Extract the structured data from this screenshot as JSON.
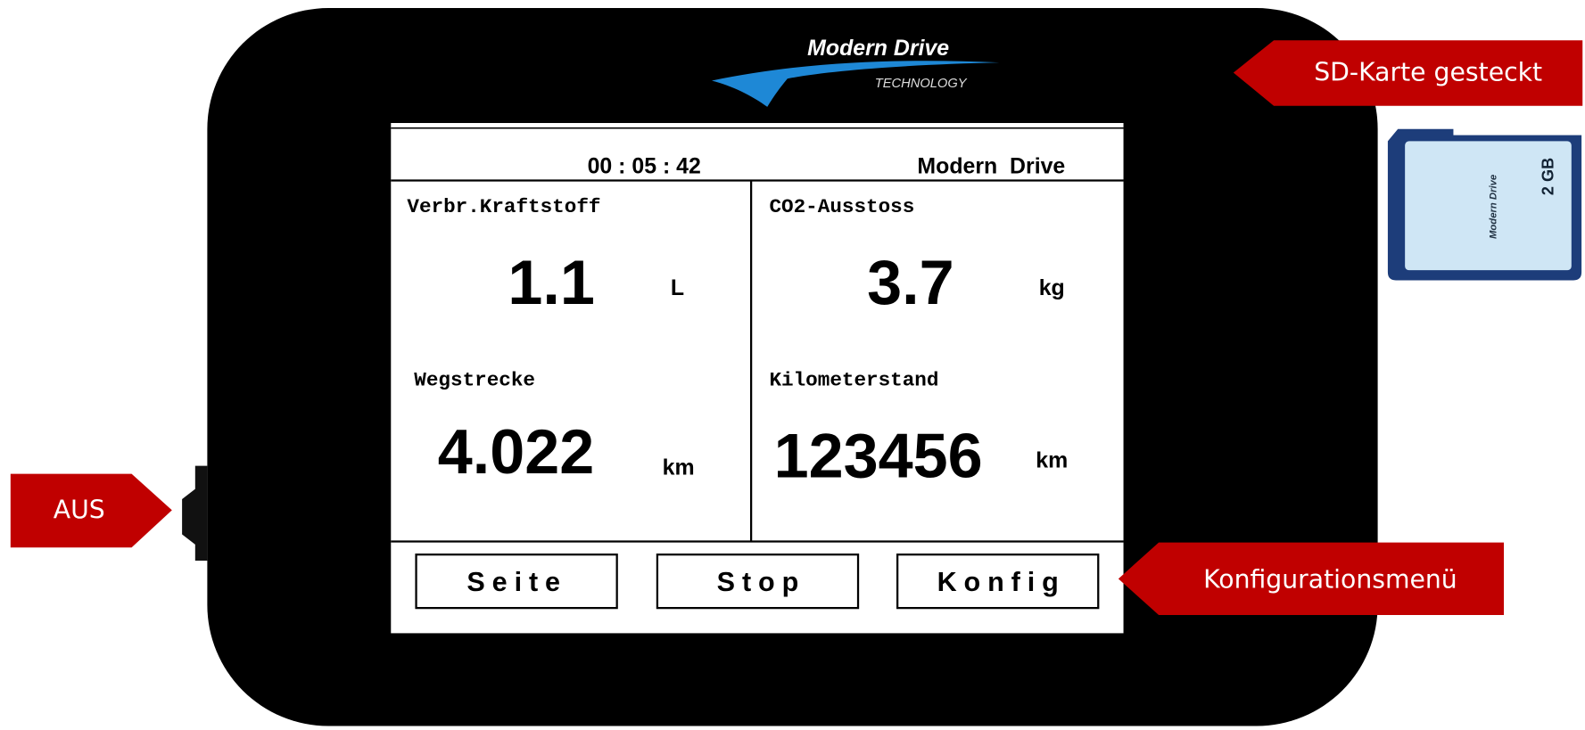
{
  "logo": {
    "brand": "Modern Drive",
    "tagline": "TECHNOLOGY"
  },
  "sd_card": {
    "brand": "Modern Drive",
    "capacity": "2 GB"
  },
  "callouts": {
    "sd_card": "SD-Karte gesteckt",
    "power": "AUS",
    "config": "Konfigurationsmenü"
  },
  "screen": {
    "time": "00 : 05 : 42",
    "title": "Modern  Drive",
    "cells": [
      {
        "label": "Verbr.Kraftstoff",
        "value": "1.1",
        "unit": "L"
      },
      {
        "label": "CO2-Ausstoss",
        "value": "3.7",
        "unit": "kg"
      },
      {
        "label": "Wegstrecke",
        "value": "4.022",
        "unit": "km"
      },
      {
        "label": "Kilometerstand",
        "value": "123456",
        "unit": "km"
      }
    ],
    "buttons": [
      "Seite",
      "Stop",
      "Konfig"
    ]
  }
}
